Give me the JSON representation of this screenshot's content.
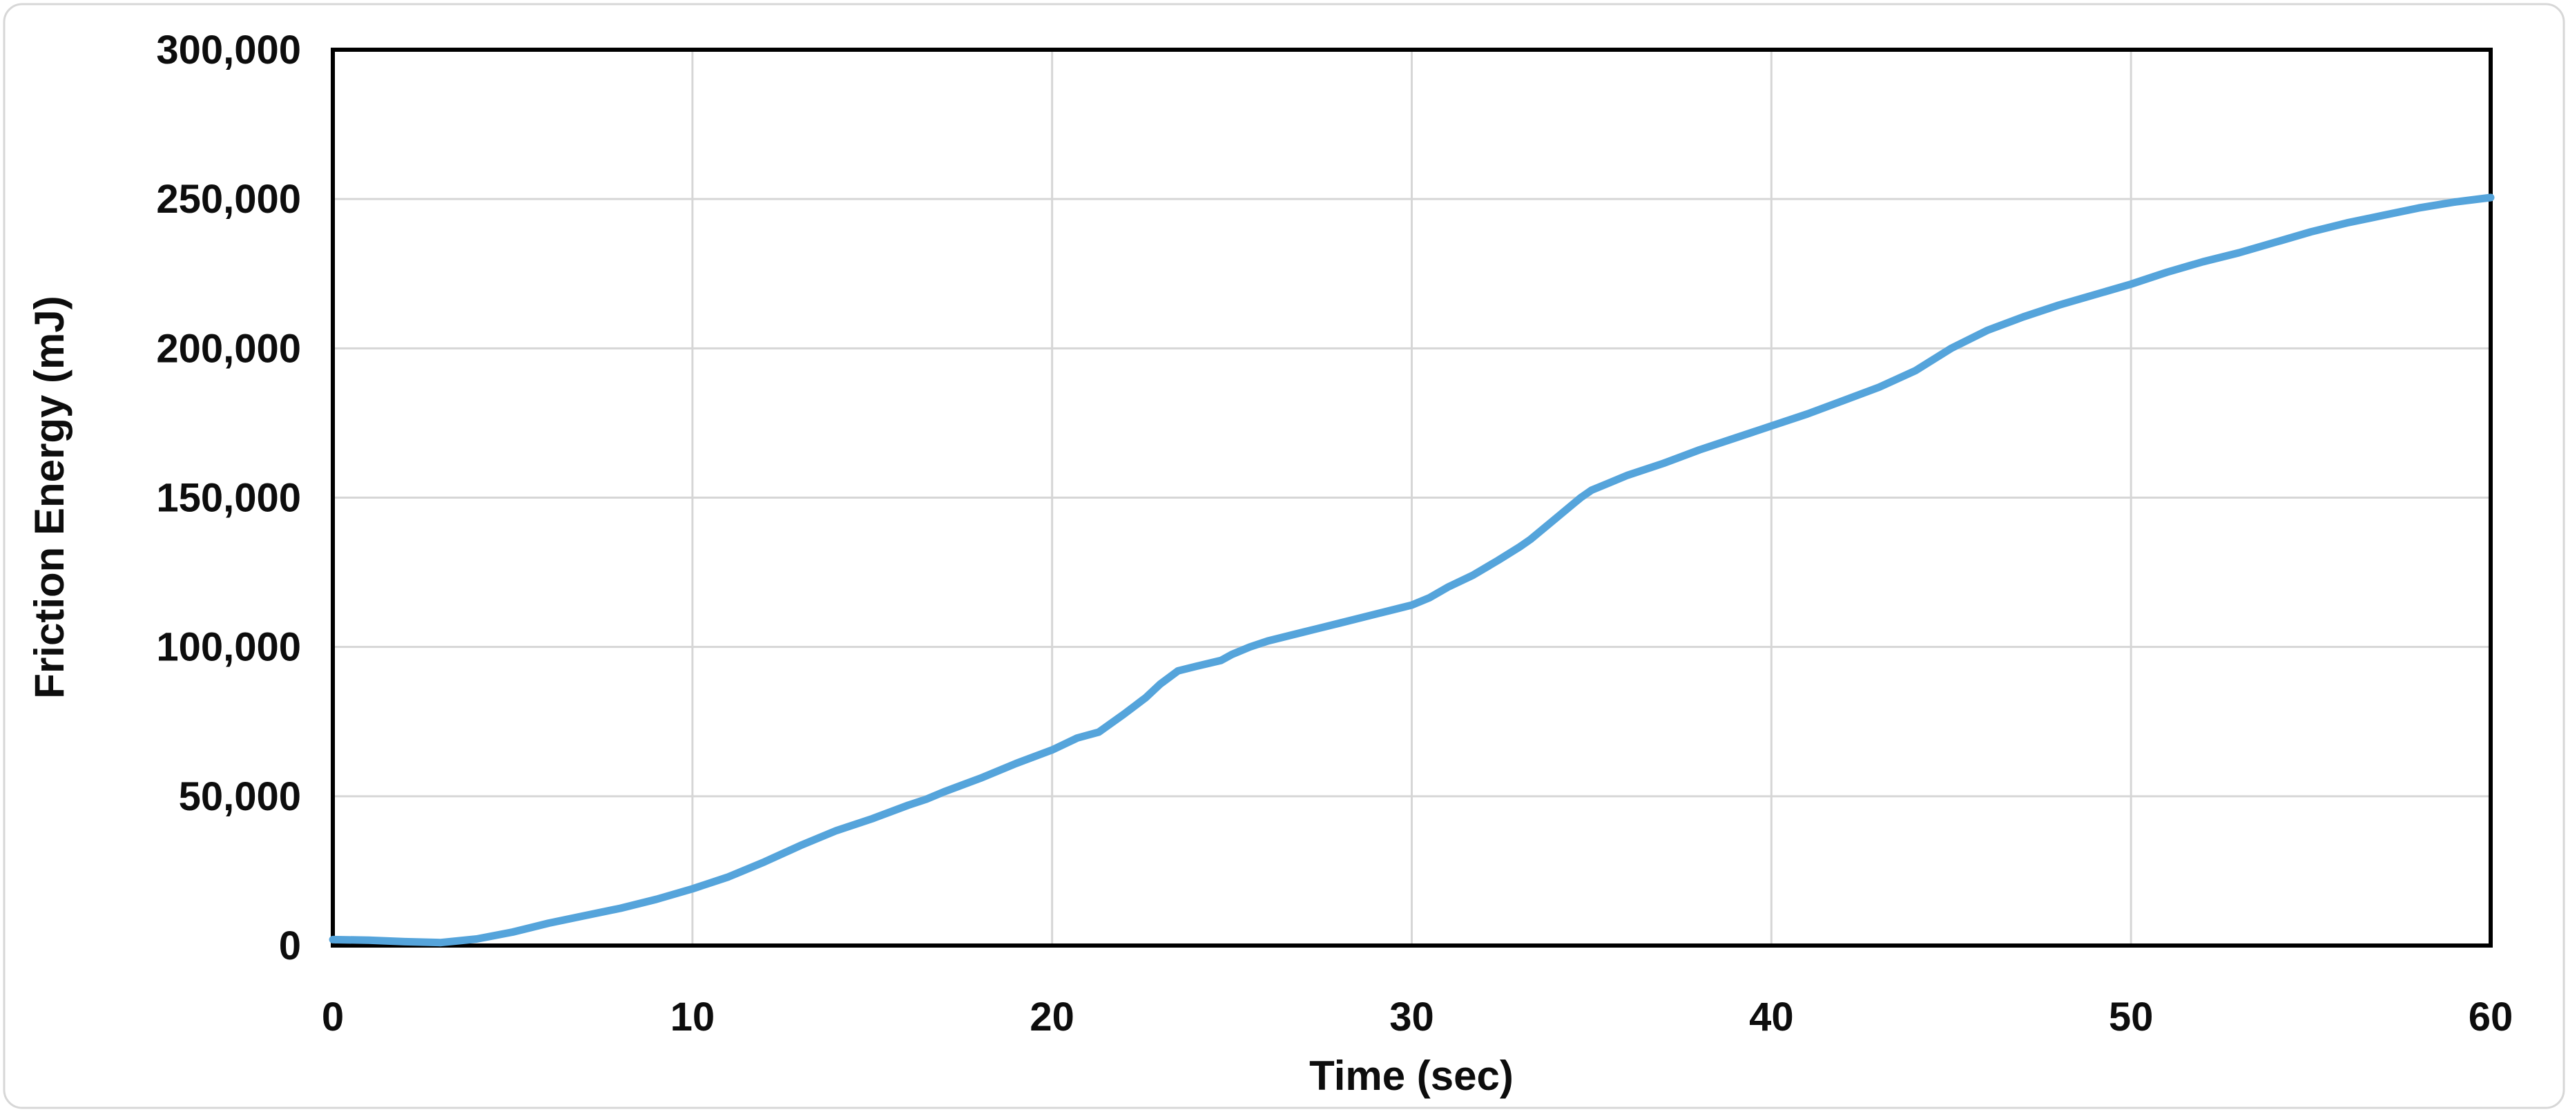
{
  "chart": {
    "title": "",
    "x_axis": {
      "title": "Time (sec)",
      "tick_labels": [
        "0",
        "10",
        "20",
        "30",
        "40",
        "50",
        "60"
      ]
    },
    "y_axis": {
      "title": "Friction Energy (mJ)",
      "tick_labels": [
        "0",
        "50,000",
        "100,000",
        "150,000",
        "200,000",
        "250,000",
        "300,000"
      ]
    },
    "colors": {
      "line": "#55A4DB",
      "gridline": "#D6D6D6",
      "plot_border": "#000000",
      "chart_border": "#D7D7D7",
      "background": "#FFFFFF",
      "text": "#0D0D0D"
    }
  },
  "chart_data": {
    "type": "line",
    "title": "",
    "xlabel": "Time (sec)",
    "ylabel": "Friction Energy (mJ)",
    "xlim": [
      0,
      60
    ],
    "ylim": [
      0,
      300000
    ],
    "x_ticks": [
      0,
      10,
      20,
      30,
      40,
      50,
      60
    ],
    "y_ticks": [
      0,
      50000,
      100000,
      150000,
      200000,
      250000,
      300000
    ],
    "grid": true,
    "legend_position": "none",
    "series": [
      {
        "name": "Friction Energy",
        "color": "#55A4DB",
        "points": [
          [
            0,
            2000
          ],
          [
            1,
            1800
          ],
          [
            2,
            1300
          ],
          [
            3,
            1000
          ],
          [
            4,
            2200
          ],
          [
            5,
            4500
          ],
          [
            6,
            7500
          ],
          [
            7,
            10000
          ],
          [
            8,
            12500
          ],
          [
            9,
            15500
          ],
          [
            10,
            19000
          ],
          [
            11,
            23000
          ],
          [
            12,
            28000
          ],
          [
            13,
            33500
          ],
          [
            14,
            38500
          ],
          [
            15,
            42500
          ],
          [
            16,
            47000
          ],
          [
            16.5,
            49000
          ],
          [
            17,
            51500
          ],
          [
            18,
            56000
          ],
          [
            19,
            61000
          ],
          [
            20,
            65500
          ],
          [
            20.7,
            69500
          ],
          [
            21.3,
            71500
          ],
          [
            22,
            77500
          ],
          [
            22.6,
            83000
          ],
          [
            23,
            87500
          ],
          [
            23.5,
            92000
          ],
          [
            24,
            93500
          ],
          [
            24.7,
            95500
          ],
          [
            25,
            97500
          ],
          [
            25.5,
            100000
          ],
          [
            26,
            102000
          ],
          [
            27,
            105000
          ],
          [
            28,
            108000
          ],
          [
            29,
            111000
          ],
          [
            30,
            114000
          ],
          [
            30.5,
            116500
          ],
          [
            31,
            120000
          ],
          [
            31.7,
            124000
          ],
          [
            32.4,
            129000
          ],
          [
            33,
            133500
          ],
          [
            33.3,
            136000
          ],
          [
            34,
            143000
          ],
          [
            34.7,
            150000
          ],
          [
            35,
            152500
          ],
          [
            35.5,
            155000
          ],
          [
            36,
            157500
          ],
          [
            37,
            161500
          ],
          [
            38,
            166000
          ],
          [
            39,
            170000
          ],
          [
            40,
            174000
          ],
          [
            41,
            178000
          ],
          [
            42,
            182500
          ],
          [
            43,
            187000
          ],
          [
            44,
            192500
          ],
          [
            45,
            200000
          ],
          [
            46,
            206000
          ],
          [
            47,
            210500
          ],
          [
            48,
            214500
          ],
          [
            49,
            218000
          ],
          [
            50,
            221500
          ],
          [
            51,
            225500
          ],
          [
            52,
            229000
          ],
          [
            53,
            232000
          ],
          [
            54,
            235500
          ],
          [
            55,
            239000
          ],
          [
            56,
            242000
          ],
          [
            57,
            244500
          ],
          [
            58,
            247000
          ],
          [
            59,
            249000
          ],
          [
            60,
            250500
          ]
        ]
      }
    ]
  }
}
